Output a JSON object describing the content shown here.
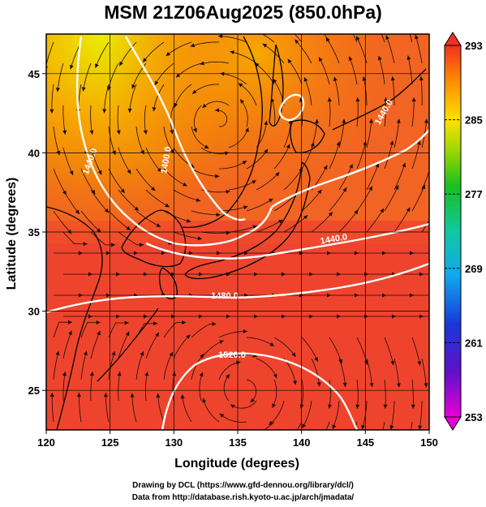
{
  "title": "MSM 21Z06Aug2025 (850.0hPa)",
  "xaxis": {
    "label": "Longitude (degrees)",
    "range": [
      120,
      150
    ],
    "ticks": [
      "120",
      "125",
      "130",
      "135",
      "140",
      "145",
      "150"
    ]
  },
  "yaxis": {
    "label": "Latitude  (degrees)",
    "range": [
      22.5,
      47.5
    ],
    "ticks": [
      "25",
      "30",
      "35",
      "40",
      "45"
    ]
  },
  "colorbar": {
    "range": [
      253,
      293
    ],
    "ticks": [
      "293",
      "285",
      "277",
      "269",
      "261",
      "253"
    ]
  },
  "contours": {
    "color": "#ffffff",
    "labels": [
      "1440.0",
      "1440.0",
      "1480.0",
      "1520.0",
      "1400.0",
      "1440.0"
    ]
  },
  "credits": {
    "line1": "Drawing by DCL (https://www.gfd-dennou.org/library/dcl/)",
    "line2": "Data from http://database.rish.kyoto-u.ac.jp/arch/jmadata/"
  },
  "chart_data": {
    "type": "heatmap",
    "title": "MSM 21Z06Aug2025 (850.0hPa)",
    "xlabel": "Longitude (degrees)",
    "ylabel": "Latitude  (degrees)",
    "xlim": [
      120,
      150
    ],
    "ylim": [
      22.5,
      47.5
    ],
    "colorbar_ticks": [
      253,
      261,
      269,
      277,
      285,
      293
    ],
    "overlays": [
      "streamlines",
      "height contours",
      "coastlines",
      "gridlines"
    ]
  }
}
